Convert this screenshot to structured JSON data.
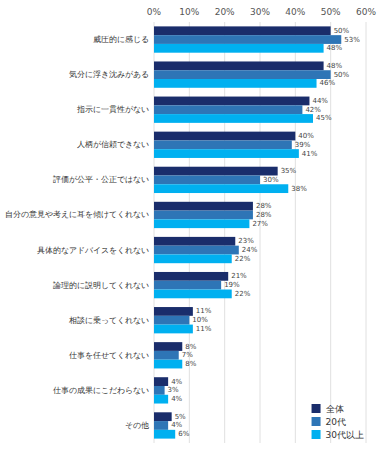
{
  "chart_data": {
    "type": "bar",
    "orientation": "horizontal",
    "categories": [
      "威圧的に感じる",
      "気分に浮き沈みがある",
      "指示に一貫性がない",
      "人柄が信頼できない",
      "評価が公平・公正ではない",
      "自分の意見や考えに耳を傾けてくれない",
      "具体的なアドバイスをくれない",
      "論理的に説明してくれない",
      "相談に乗ってくれない",
      "仕事を任せてくれない",
      "仕事の成果にこだわらない",
      "その他"
    ],
    "series": [
      {
        "name": "全体",
        "color": "#1a2d6b",
        "values": [
          50,
          48,
          44,
          40,
          35,
          28,
          23,
          21,
          11,
          8,
          4,
          5
        ],
        "value_labels": [
          "50%",
          "48%",
          "44%",
          "40%",
          "35%",
          "28%",
          "23%",
          "21%",
          "11%",
          "8%",
          "4%",
          "5%"
        ]
      },
      {
        "name": "20代",
        "color": "#2e75b6",
        "values": [
          53,
          50,
          42,
          39,
          30,
          28,
          24,
          19,
          10,
          7,
          3,
          4
        ],
        "value_labels": [
          "53%",
          "50%",
          "42%",
          "39%",
          "30%",
          "28%",
          "24%",
          "19%",
          "10%",
          "7%",
          "3%",
          "4%"
        ]
      },
      {
        "name": "30代以上",
        "color": "#00b0f0",
        "values": [
          48,
          46,
          45,
          41,
          38,
          27,
          22,
          22,
          11,
          8,
          4,
          6
        ],
        "value_labels": [
          "48%",
          "46%",
          "45%",
          "41%",
          "38%",
          "27%",
          "22%",
          "22%",
          "11%",
          "8%",
          "4%",
          "6%"
        ]
      }
    ],
    "xlim": [
      0,
      60
    ],
    "xticks": [
      {
        "value": 0,
        "label": "0%"
      },
      {
        "value": 10,
        "label": "10%"
      },
      {
        "value": 20,
        "label": "20%"
      },
      {
        "value": 30,
        "label": "30%"
      },
      {
        "value": 40,
        "label": "40%"
      },
      {
        "value": 50,
        "label": "50%"
      },
      {
        "value": 60,
        "label": "60%"
      }
    ],
    "grid": true,
    "legend": "lower right",
    "data_labels": true
  }
}
